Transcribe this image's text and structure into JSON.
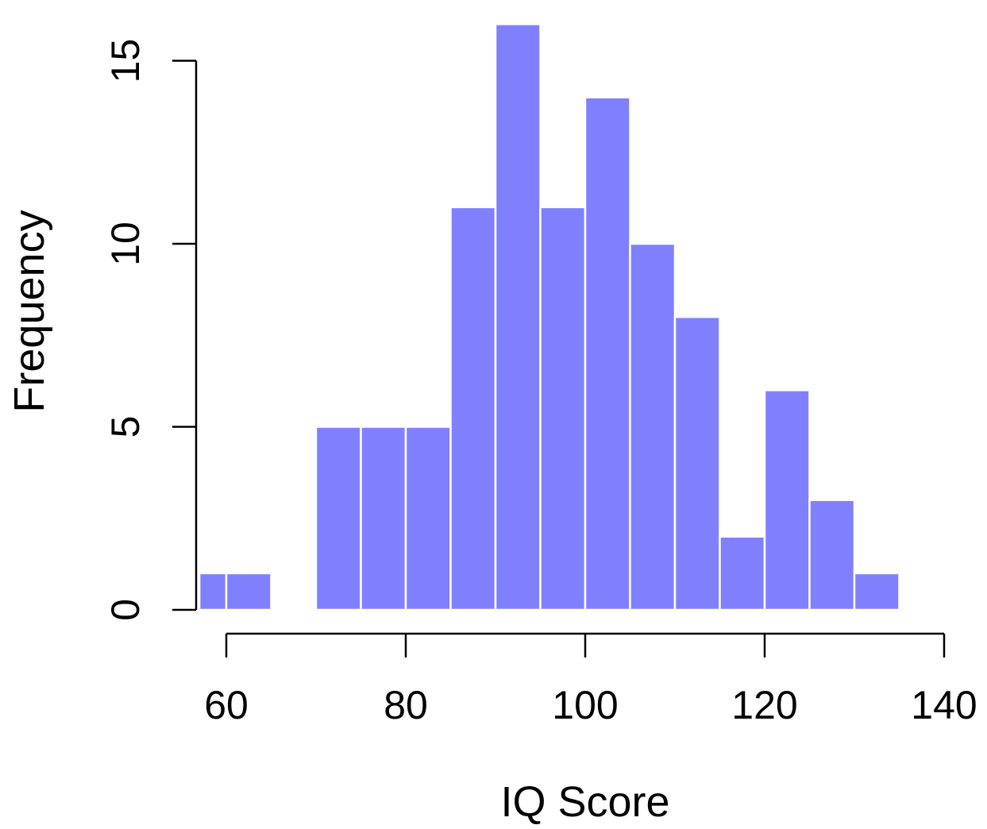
{
  "chart_data": {
    "type": "bar",
    "title": "",
    "xlabel": "IQ Score",
    "ylabel": "Frequency",
    "bar_color": "#8080ff",
    "bins": [
      {
        "start": 55,
        "end": 60,
        "count": 1
      },
      {
        "start": 60,
        "end": 65,
        "count": 1
      },
      {
        "start": 65,
        "end": 70,
        "count": 0
      },
      {
        "start": 70,
        "end": 75,
        "count": 5
      },
      {
        "start": 75,
        "end": 80,
        "count": 5
      },
      {
        "start": 80,
        "end": 85,
        "count": 5
      },
      {
        "start": 85,
        "end": 90,
        "count": 11
      },
      {
        "start": 90,
        "end": 95,
        "count": 16
      },
      {
        "start": 95,
        "end": 100,
        "count": 11
      },
      {
        "start": 100,
        "end": 105,
        "count": 14
      },
      {
        "start": 105,
        "end": 110,
        "count": 10
      },
      {
        "start": 110,
        "end": 115,
        "count": 8
      },
      {
        "start": 115,
        "end": 120,
        "count": 2
      },
      {
        "start": 120,
        "end": 125,
        "count": 6
      },
      {
        "start": 125,
        "end": 130,
        "count": 3
      },
      {
        "start": 130,
        "end": 135,
        "count": 1
      }
    ],
    "xlim": [
      57,
      135
    ],
    "ylim": [
      0,
      16
    ],
    "x_ticks": [
      60,
      80,
      100,
      120,
      140
    ],
    "x_tick_labels": [
      "60",
      "80",
      "100",
      "120",
      "140"
    ],
    "y_ticks": [
      0,
      5,
      10,
      15
    ],
    "y_tick_labels": [
      "0",
      "5",
      "10",
      "15"
    ],
    "grid": false,
    "legend": "none"
  }
}
